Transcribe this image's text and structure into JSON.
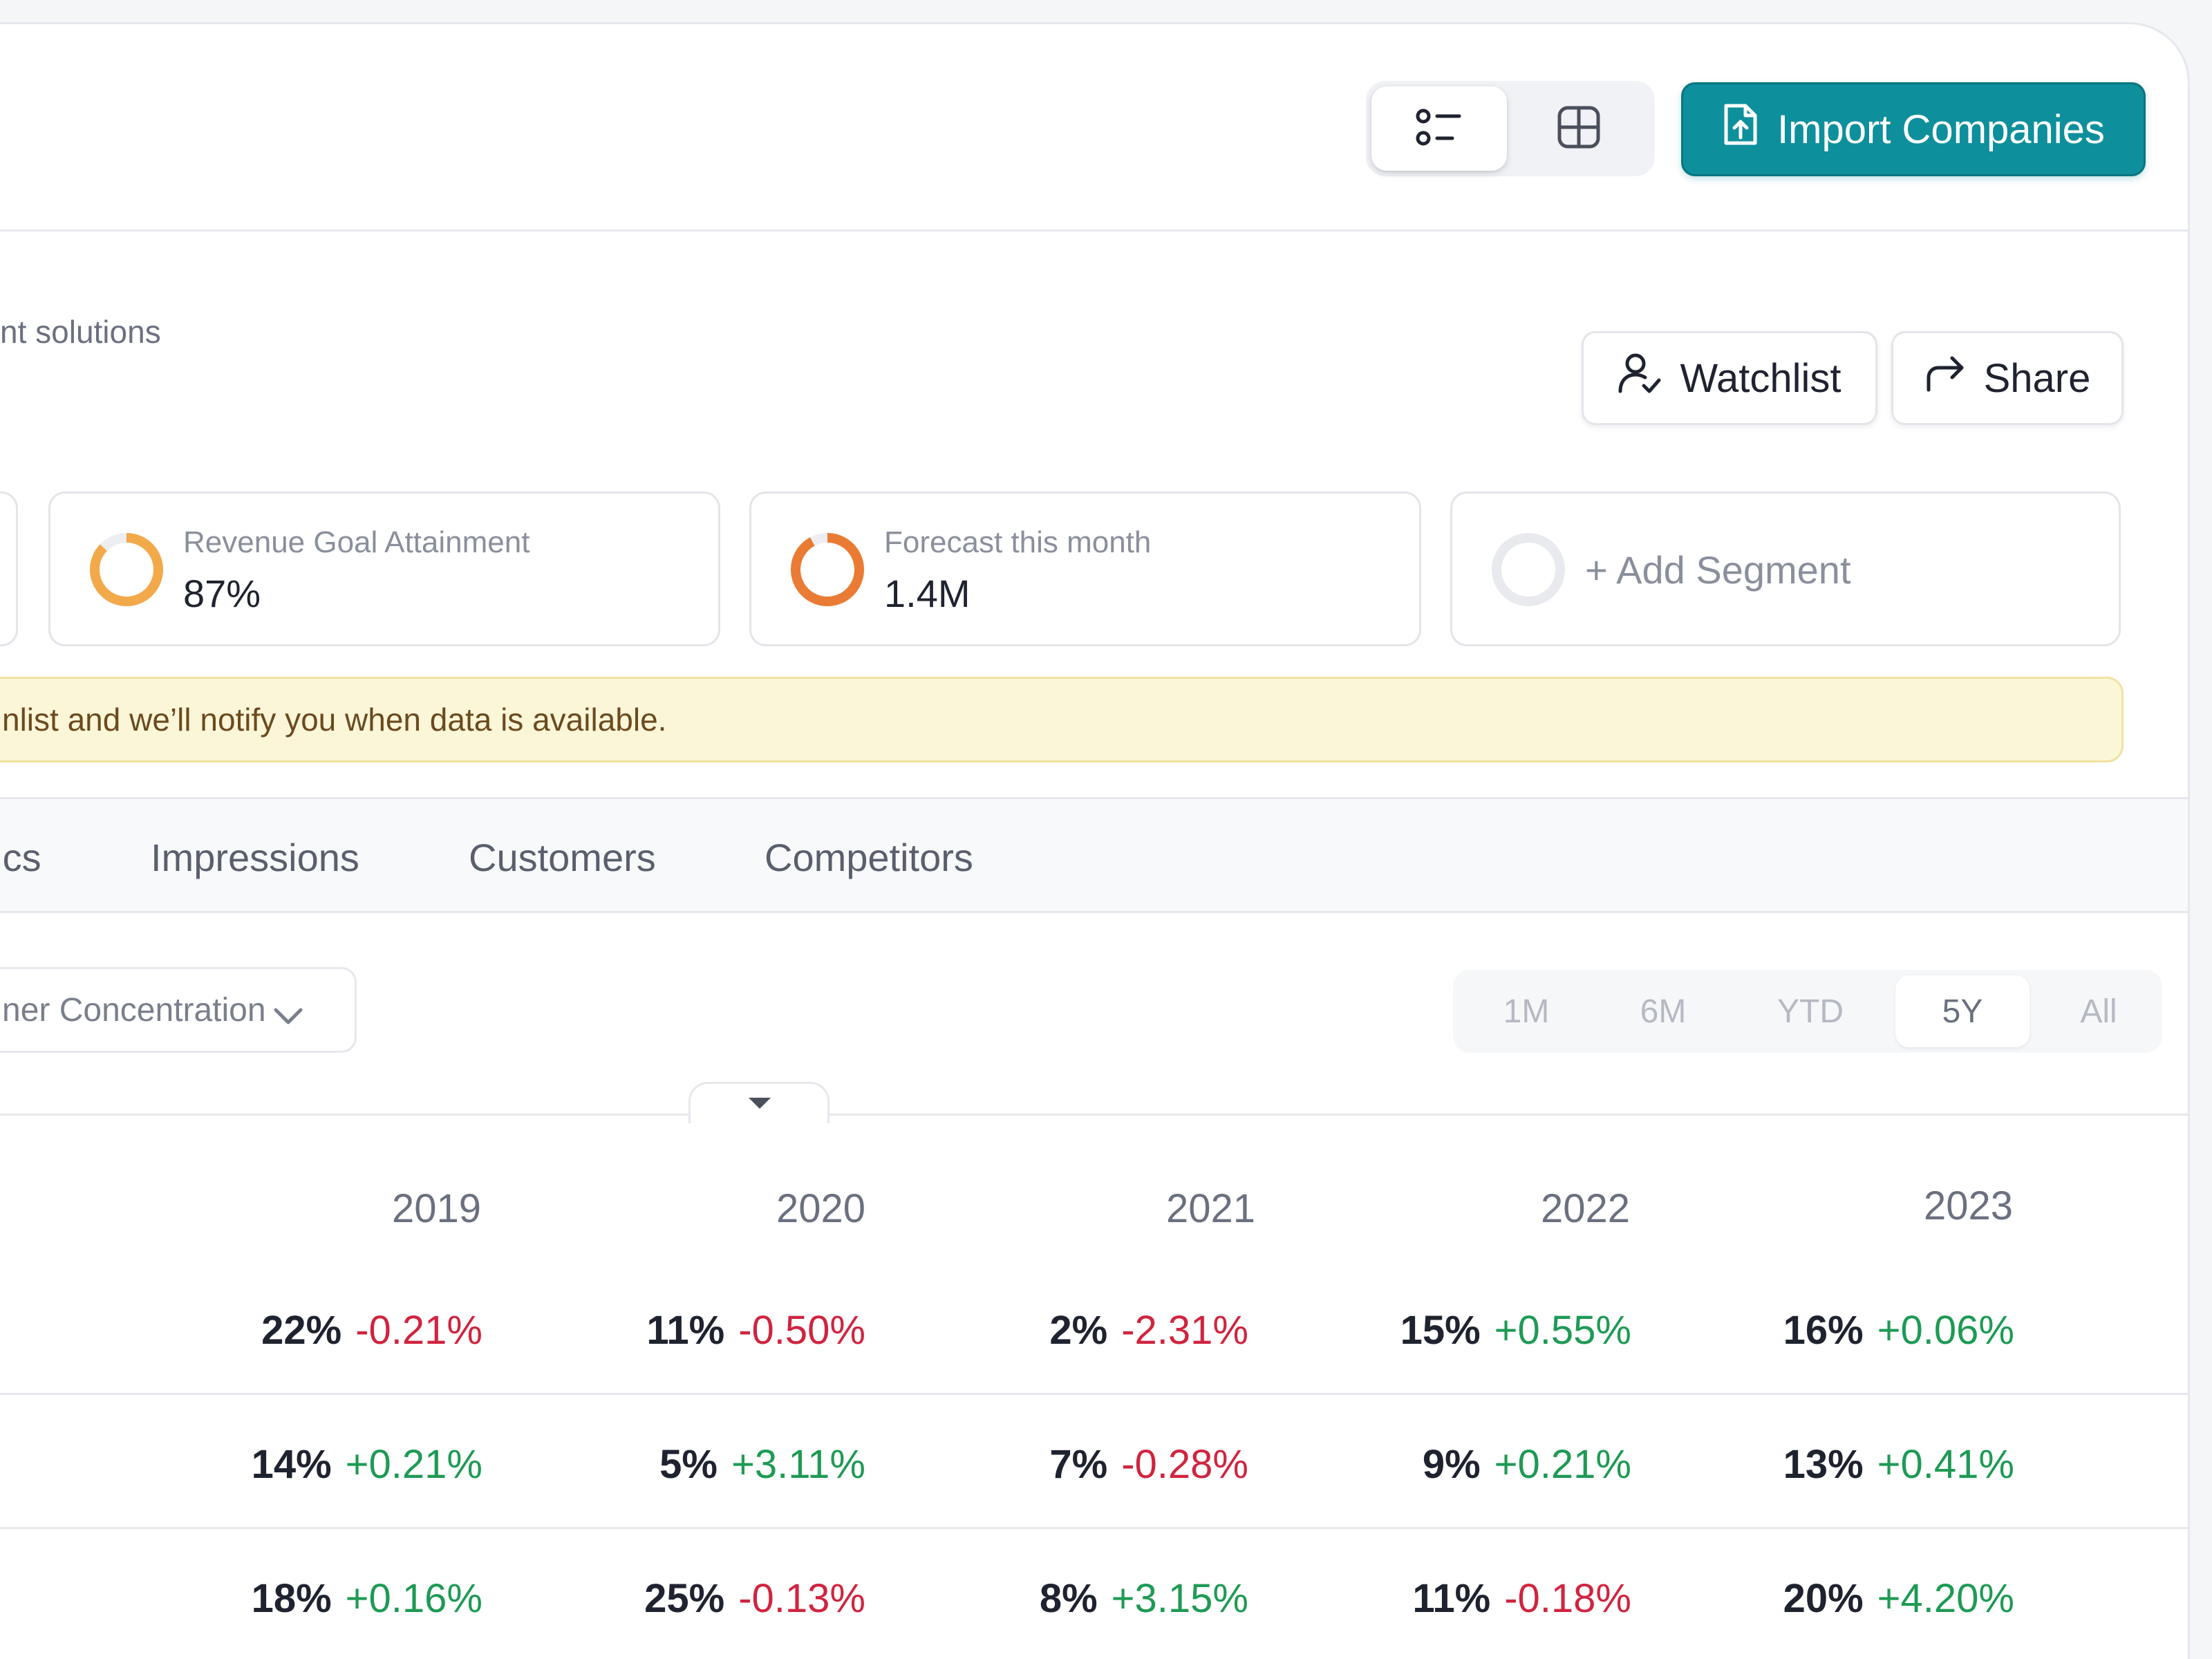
{
  "header": {
    "import_label": "Import Companies",
    "view_icons": [
      "list-view-icon",
      "grid-view-icon"
    ]
  },
  "company": {
    "subtitle": "nt solutions",
    "watchlist_label": "Watchlist",
    "share_label": "Share"
  },
  "cards": [
    {
      "label": "Revenue Goal Attainment",
      "value": "87%",
      "progress": 0.87,
      "color": "#f2a94a"
    },
    {
      "label": "Forecast this month",
      "value": "1.4M",
      "progress": 0.92,
      "color": "#ea7b34"
    },
    {
      "label": "+ Add Segment",
      "progress": 0
    }
  ],
  "notice": "nlist and we’ll notify you when data is available.",
  "tabs": [
    "pics",
    "Impressions",
    "Customers",
    "Competitors"
  ],
  "filter": {
    "dropdown_value": "ner Concentration",
    "ranges": [
      "1M",
      "6M",
      "YTD",
      "5Y",
      "All"
    ],
    "active_range": "5Y"
  },
  "table": {
    "years": [
      "2019",
      "2020",
      "2021",
      "2022",
      "2023"
    ],
    "rows": [
      [
        [
          "22%",
          "-0.21%"
        ],
        [
          "11%",
          "-0.50%"
        ],
        [
          "2%",
          "-2.31%"
        ],
        [
          "15%",
          "+0.55%"
        ],
        [
          "16%",
          "+0.06%"
        ]
      ],
      [
        [
          "14%",
          "+0.21%"
        ],
        [
          "5%",
          "+3.11%"
        ],
        [
          "7%",
          "-0.28%"
        ],
        [
          "9%",
          "+0.21%"
        ],
        [
          "13%",
          "+0.41%"
        ]
      ],
      [
        [
          "18%",
          "+0.16%"
        ],
        [
          "25%",
          "-0.13%"
        ],
        [
          "8%",
          "+3.15%"
        ],
        [
          "11%",
          "-0.18%"
        ],
        [
          "20%",
          "+4.20%"
        ]
      ]
    ]
  },
  "colors": {
    "accent": "#0e8f9c",
    "negative": "#d0243f",
    "positive": "#1e9a54"
  }
}
